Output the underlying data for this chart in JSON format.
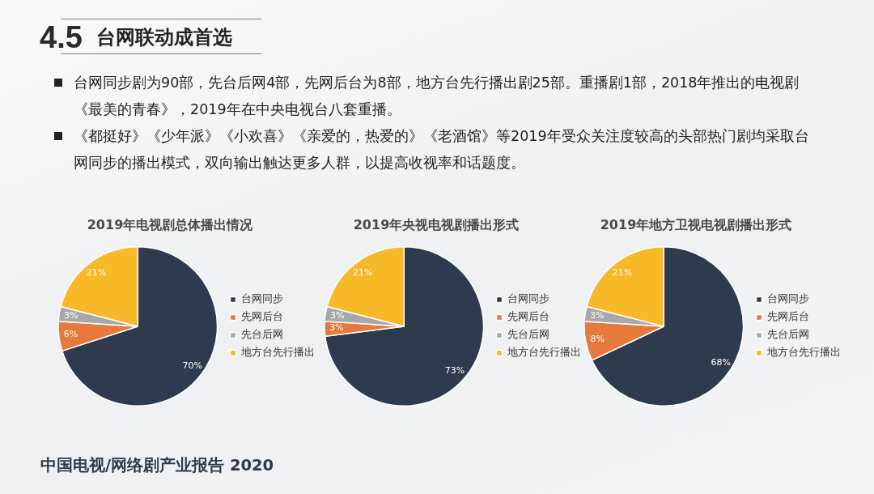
{
  "chart_data": [
    {
      "type": "other",
      "title": "台网联动成首选",
      "annotations": [
        "4.5",
        "台网同步剧为90部，先台后网4部，先网后台为8部，地方台先行播出剧25部。重播剧1部，2018年推出的电视剧《最美的青春》，2019年在中央电视台八套重播。",
        "《都挺好》《少年派》《小欢喜》《亲爱的，热爱的》《老酒馆》等2019年受众关注度较高的头部热门剧均采取台网同步的播出模式，双向输出触达更多人群，以提高收视率和话题度。",
        "中国电视/网络剧产业报告 2020"
      ]
    },
    {
      "type": "pie",
      "title": "2019年电视剧总体播出情况",
      "categories": [
        "台网同步",
        "先网后台",
        "先台后网",
        "地方台先行播出"
      ],
      "values": [
        70,
        6,
        3,
        21
      ],
      "colors": [
        "#2e3b4e",
        "#e8793c",
        "#a8a8a8",
        "#f7b928"
      ],
      "value_labels": [
        "70%",
        "6%",
        "3%",
        "21%"
      ],
      "legend": "right"
    },
    {
      "type": "pie",
      "title": "2019年央视电视剧播出形式",
      "categories": [
        "台网同步",
        "先网后台",
        "先台后网",
        "地方台先行播出"
      ],
      "values": [
        73,
        3,
        3,
        21
      ],
      "colors": [
        "#2e3b4e",
        "#e8793c",
        "#a8a8a8",
        "#f7b928"
      ],
      "value_labels": [
        "73%",
        "3%",
        "3%",
        "21%"
      ],
      "legend": "right"
    },
    {
      "type": "pie",
      "title": "2019年地方卫视电视剧播出形式",
      "categories": [
        "台网同步",
        "先网后台",
        "先台后网",
        "地方台先行播出"
      ],
      "values": [
        68,
        8,
        3,
        21
      ],
      "colors": [
        "#2e3b4e",
        "#e8793c",
        "#a8a8a8",
        "#f7b928"
      ],
      "value_labels": [
        "68%",
        "8%",
        "3%",
        "21%"
      ],
      "legend": "right"
    }
  ]
}
